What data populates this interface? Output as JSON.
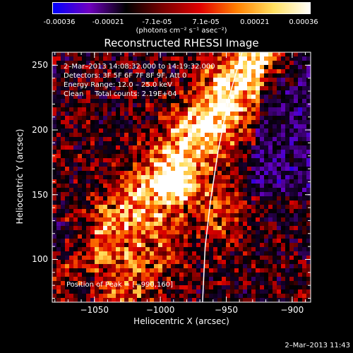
{
  "colorbar": {
    "ticks": [
      "-0.00036",
      "-0.00021",
      "-7.1e-05",
      "7.1e-05",
      "0.00021",
      "0.00036"
    ],
    "unit": "(photons cm⁻² s⁻¹ asec⁻²)",
    "range": [
      -0.00036,
      0.00036
    ],
    "colors": [
      "#0000ff",
      "#7000c0",
      "#000000",
      "#7a0000",
      "#e00000",
      "#ff8000",
      "#ffe060",
      "#ffffff"
    ]
  },
  "chart_data": {
    "type": "heatmap",
    "title": "Reconstructed RHESSI Image",
    "xlabel": "Heliocentric X (arcsec)",
    "ylabel": "Heliocentric Y (arcsec)",
    "xlim": [
      -1082,
      -886
    ],
    "ylim": [
      67,
      260
    ],
    "xticks": [
      -1050,
      -1000,
      -950,
      -900
    ],
    "xtick_labels": [
      "−1050",
      "−1000",
      "−950",
      "−900"
    ],
    "yticks": [
      100,
      150,
      200,
      250
    ],
    "ytick_labels": [
      "100",
      "150",
      "200",
      "250"
    ],
    "peak": [
      -990,
      160
    ],
    "annotations": {
      "time": "2–Mar–2013 14:08:32.000 to 14:19:32.000",
      "detectors": "Detectors: 3F 5F 6F 7F 8F 9F, Att 0",
      "energy": "Energy Range: 12.0 – 25.0 keV",
      "clean": "Clean     Total counts: 2.19E+04",
      "peak_text": "Position of Peak = [−990,160]"
    },
    "limb_curve": [
      [
        -938,
        260
      ],
      [
        -948,
        225
      ],
      [
        -956,
        185
      ],
      [
        -962,
        145
      ],
      [
        -966,
        110
      ],
      [
        -968,
        67
      ]
    ]
  },
  "timestamp": "2–Mar–2013 11:43"
}
